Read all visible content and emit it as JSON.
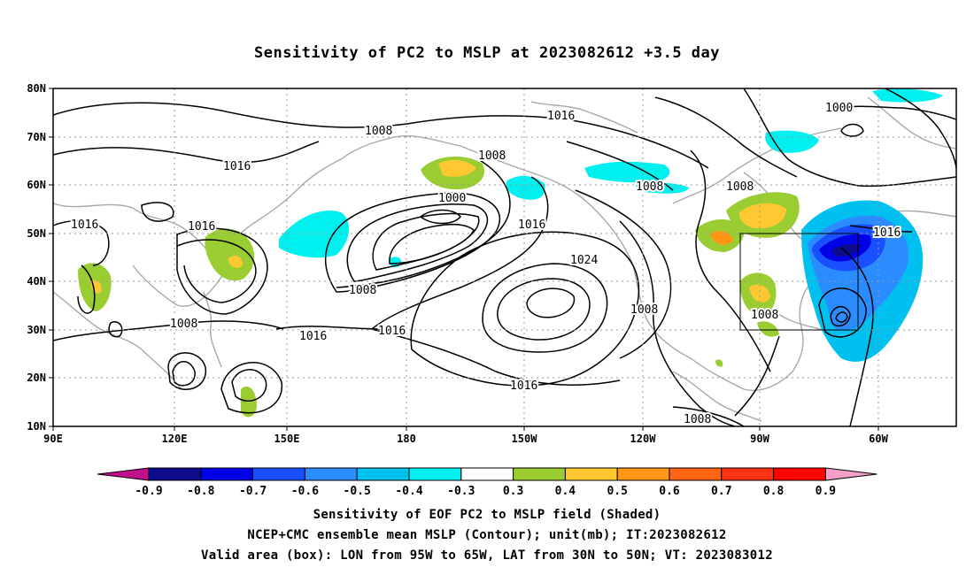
{
  "title": "Sensitivity of PC2 to MSLP at 2023082612 +3.5 day",
  "map": {
    "lat_labels": [
      "80N",
      "70N",
      "60N",
      "50N",
      "40N",
      "30N",
      "20N",
      "10N"
    ],
    "lon_labels": [
      "90E",
      "120E",
      "150E",
      "180",
      "150W",
      "120W",
      "90W",
      "60W"
    ],
    "contour_labels": [
      "1008",
      "1016",
      "1008",
      "1016",
      "1016",
      "1016",
      "1008",
      "1008",
      "1000",
      "1016",
      "1008",
      "1016",
      "1024",
      "1008",
      "1016",
      "1008",
      "1016",
      "1008",
      "1000",
      "1008",
      "1016",
      "1008",
      "1008"
    ],
    "valid_box": {
      "lon_w": "95W",
      "lon_e": "65W",
      "lat_s": "30N",
      "lat_n": "50N"
    }
  },
  "colorbar": {
    "labels": [
      "-0.9",
      "-0.8",
      "-0.7",
      "-0.6",
      "-0.5",
      "-0.4",
      "-0.3",
      "0.3",
      "0.4",
      "0.5",
      "0.6",
      "0.7",
      "0.8",
      "0.9"
    ],
    "colors": [
      "#0b0b8c",
      "#0000e6",
      "#1a4fff",
      "#2b8cff",
      "#00c0f0",
      "#00f0f0",
      "#ffffff",
      "#9acd32",
      "#ffc832",
      "#ff9614",
      "#ff6414",
      "#ff3214",
      "#ff0000"
    ],
    "low_extend_color": "#c0108c",
    "high_extend_color": "#f5a0c8"
  },
  "captions": {
    "line1": "Sensitivity of EOF PC2 to MSLP field (Shaded)",
    "line2": "NCEP+CMC ensemble mean MSLP (Contour); unit(mb); IT:2023082612",
    "line3": "Valid area (box): LON from 95W to 65W, LAT from 30N to 50N; VT: 2023083012"
  }
}
